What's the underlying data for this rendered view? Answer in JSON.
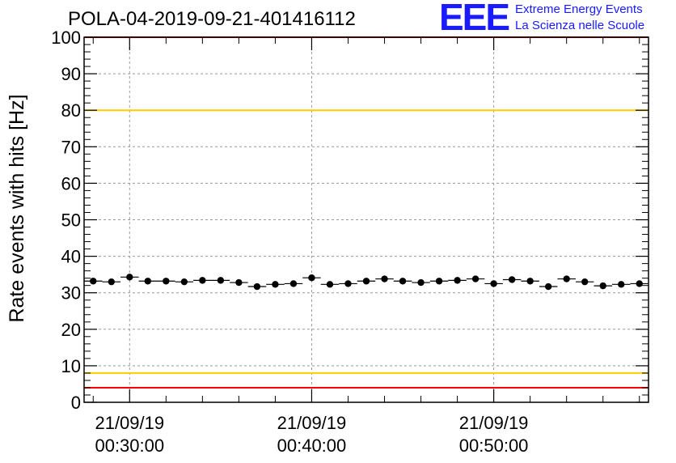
{
  "title": "POLA-04-2019-09-21-401416112",
  "logo": {
    "letters": "EEE",
    "line1": "Extreme Energy Events",
    "line2": "La Scienza nelle Scuole",
    "color": "#1a1aff"
  },
  "chart_data": {
    "type": "scatter",
    "ylabel": "Rate events with hits [Hz]",
    "ylim": [
      0,
      100
    ],
    "yticks": [
      0,
      10,
      20,
      30,
      40,
      50,
      60,
      70,
      80,
      90,
      100
    ],
    "xlim": [
      "00:27:30",
      "00:58:30"
    ],
    "xticks": [
      {
        "time": "00:30:00",
        "date": "21/09/19",
        "time_label": "00:30:00"
      },
      {
        "time": "00:40:00",
        "date": "21/09/19",
        "time_label": "00:40:00"
      },
      {
        "time": "00:50:00",
        "date": "21/09/19",
        "time_label": "00:50:00"
      }
    ],
    "grid": true,
    "reference_lines": [
      {
        "value": 100,
        "color": "#ff0000"
      },
      {
        "value": 80,
        "color": "#ffcc00"
      },
      {
        "value": 8,
        "color": "#ffcc00"
      },
      {
        "value": 4,
        "color": "#ff0000"
      }
    ],
    "points": [
      {
        "x": "00:28:00",
        "y": 33.2
      },
      {
        "x": "00:29:00",
        "y": 33.0
      },
      {
        "x": "00:30:00",
        "y": 34.3
      },
      {
        "x": "00:31:00",
        "y": 33.2
      },
      {
        "x": "00:32:00",
        "y": 33.2
      },
      {
        "x": "00:33:00",
        "y": 33.0
      },
      {
        "x": "00:34:00",
        "y": 33.4
      },
      {
        "x": "00:35:00",
        "y": 33.4
      },
      {
        "x": "00:36:00",
        "y": 32.8
      },
      {
        "x": "00:37:00",
        "y": 31.7
      },
      {
        "x": "00:38:00",
        "y": 32.3
      },
      {
        "x": "00:39:00",
        "y": 32.5
      },
      {
        "x": "00:40:00",
        "y": 34.1
      },
      {
        "x": "00:41:00",
        "y": 32.3
      },
      {
        "x": "00:42:00",
        "y": 32.5
      },
      {
        "x": "00:43:00",
        "y": 33.2
      },
      {
        "x": "00:44:00",
        "y": 33.8
      },
      {
        "x": "00:45:00",
        "y": 33.2
      },
      {
        "x": "00:46:00",
        "y": 32.8
      },
      {
        "x": "00:47:00",
        "y": 33.2
      },
      {
        "x": "00:48:00",
        "y": 33.4
      },
      {
        "x": "00:49:00",
        "y": 33.8
      },
      {
        "x": "00:50:00",
        "y": 32.5
      },
      {
        "x": "00:51:00",
        "y": 33.6
      },
      {
        "x": "00:52:00",
        "y": 33.2
      },
      {
        "x": "00:53:00",
        "y": 31.7
      },
      {
        "x": "00:54:00",
        "y": 33.8
      },
      {
        "x": "00:55:00",
        "y": 33.0
      },
      {
        "x": "00:56:00",
        "y": 31.9
      },
      {
        "x": "00:57:00",
        "y": 32.3
      },
      {
        "x": "00:58:00",
        "y": 32.5
      }
    ],
    "marker_color": "#000000"
  }
}
